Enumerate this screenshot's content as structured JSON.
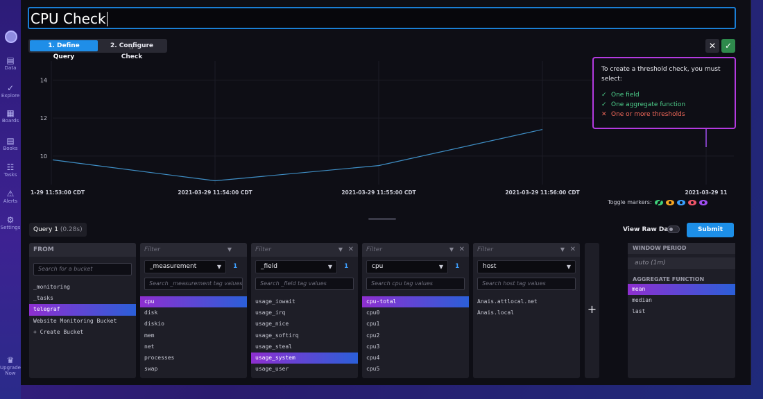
{
  "check": {
    "title": "CPU Check",
    "steps": [
      "1. Define Query",
      "2. Configure Check"
    ]
  },
  "nav": {
    "items": [
      {
        "label": "Data",
        "icon": "data-icon"
      },
      {
        "label": "Explore",
        "icon": "explore-icon"
      },
      {
        "label": "Boards",
        "icon": "boards-icon"
      },
      {
        "label": "Books",
        "icon": "books-icon"
      },
      {
        "label": "Tasks",
        "icon": "tasks-icon"
      },
      {
        "label": "Alerts",
        "icon": "alerts-icon"
      },
      {
        "label": "Settings",
        "icon": "settings-icon"
      },
      {
        "label": "Upgrade Now",
        "icon": "crown-icon"
      }
    ]
  },
  "tooltip": {
    "intro": "To create a threshold check, you must select:",
    "requirements": [
      {
        "text": "One field",
        "status": "ok"
      },
      {
        "text": "One aggregate function",
        "status": "ok"
      },
      {
        "text": "One or more thresholds",
        "status": "missing"
      }
    ]
  },
  "chart_data": {
    "type": "line",
    "x": [
      "2021-03-29 11:53:00 CDT",
      "2021-03-29 11:54:00 CDT",
      "2021-03-29 11:55:00 CDT",
      "2021-03-29 11:56:00 CDT"
    ],
    "x_tick_labels": [
      "1-29 11:53:00 CDT",
      "2021-03-29 11:54:00 CDT",
      "2021-03-29 11:55:00 CDT",
      "2021-03-29 11:56:00 CDT",
      "2021-03-29 11"
    ],
    "y_tick_labels": [
      "10",
      "12",
      "14"
    ],
    "series": [
      {
        "color": "#3f8fc6",
        "points": [
          [
            0,
            9.8
          ],
          [
            1,
            8.7
          ],
          [
            2,
            9.5
          ],
          [
            3,
            11.4
          ]
        ]
      }
    ],
    "ylim": [
      8.5,
      15
    ],
    "grid": true
  },
  "toggle_markers": {
    "label": "Toggle markers:",
    "markers": [
      {
        "color": "#3fd27a",
        "state": "hidden"
      },
      {
        "color": "#f5a623",
        "state": "shown"
      },
      {
        "color": "#3aa0ff",
        "state": "shown"
      },
      {
        "color": "#f0566a",
        "state": "shown"
      },
      {
        "color": "#a04ef0",
        "state": "shown"
      }
    ]
  },
  "query": {
    "tab_label": "Query 1",
    "tab_time": "(0.28s)",
    "view_raw_label": "View Raw Data",
    "submit_label": "Submit"
  },
  "builder": {
    "from": {
      "header": "FROM",
      "search_placeholder": "Search for a bucket",
      "items": [
        "_monitoring",
        "_tasks",
        "telegraf",
        "Website Monitoring Bucket",
        "+ Create Bucket"
      ],
      "selected": 2
    },
    "filters": [
      {
        "header": "Filter",
        "key": "_measurement",
        "count": "1",
        "search_placeholder": "Search _measurement tag values",
        "items": [
          "cpu",
          "disk",
          "diskio",
          "mem",
          "net",
          "processes",
          "swap"
        ],
        "selected": 0,
        "closable": false
      },
      {
        "header": "Filter",
        "key": "_field",
        "count": "1",
        "search_placeholder": "Search _field tag values",
        "items": [
          "usage_iowait",
          "usage_irq",
          "usage_nice",
          "usage_softirq",
          "usage_steal",
          "usage_system",
          "usage_user"
        ],
        "selected": 5,
        "closable": true
      },
      {
        "header": "Filter",
        "key": "cpu",
        "count": "1",
        "search_placeholder": "Search cpu tag values",
        "items": [
          "cpu-total",
          "cpu0",
          "cpu1",
          "cpu2",
          "cpu3",
          "cpu4",
          "cpu5"
        ],
        "selected": 0,
        "closable": true
      },
      {
        "header": "Filter",
        "key": "host",
        "count": "",
        "search_placeholder": "Search host tag values",
        "items": [
          "Anais.attlocal.net",
          "Anais.local"
        ],
        "selected": -1,
        "closable": true
      }
    ],
    "add_label": "+",
    "aggregate": {
      "window_header": "WINDOW PERIOD",
      "window_value": "auto (1m)",
      "function_header": "AGGREGATE FUNCTION",
      "functions": [
        "mean",
        "median",
        "last"
      ],
      "selected": 0
    }
  }
}
